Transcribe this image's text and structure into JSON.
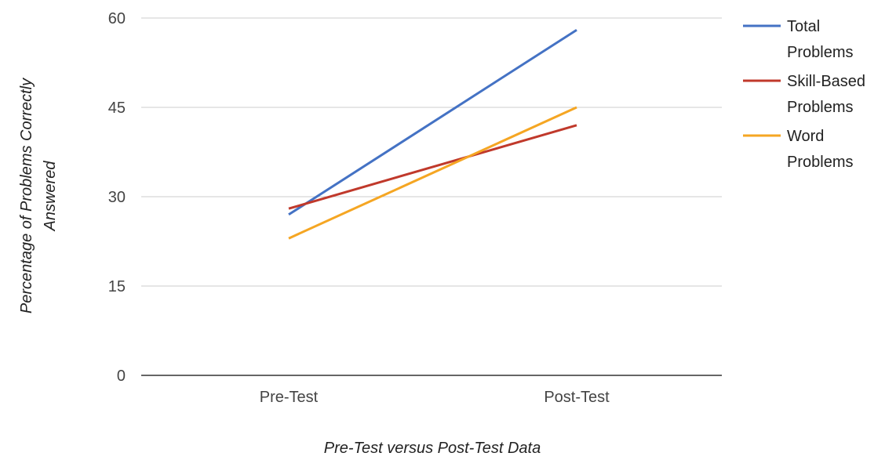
{
  "chart_data": {
    "type": "line",
    "title": "",
    "xlabel": "Pre-Test versus Post-Test Data",
    "ylabel": "Percentage of Problems Correctly Answered",
    "ylabel_lines": [
      "Percentage of Problems Correctly",
      "Answered"
    ],
    "categories": [
      "Pre-Test",
      "Post-Test"
    ],
    "ylim": [
      0,
      60
    ],
    "yticks": [
      0,
      15,
      30,
      45,
      60
    ],
    "grid": true,
    "legend_position": "right",
    "series": [
      {
        "name": "Total Problems",
        "name_lines": [
          "Total",
          "Problems"
        ],
        "color": "#4472c4",
        "values": [
          27,
          58
        ]
      },
      {
        "name": "Skill-Based Problems",
        "name_lines": [
          "Skill-Based",
          "Problems"
        ],
        "color": "#c0392b",
        "values": [
          28,
          42
        ]
      },
      {
        "name": "Word Problems",
        "name_lines": [
          "Word",
          "Problems"
        ],
        "color": "#f5a623",
        "values": [
          23,
          45
        ]
      }
    ]
  }
}
